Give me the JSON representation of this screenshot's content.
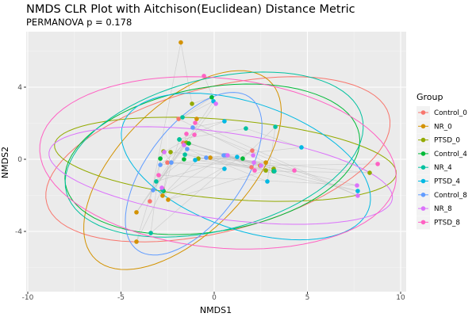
{
  "chart_data": {
    "type": "scatter",
    "title": "NMDS CLR Plot with Aitchison(Euclidean) Distance Metric",
    "subtitle": "PERMANOVA p = 0.178",
    "xlabel": "NMDS1",
    "ylabel": "NMDS2",
    "xlim": [
      -10.1,
      10.3
    ],
    "ylim": [
      -7.4,
      7.1
    ],
    "xticks": [
      -10,
      -5,
      0,
      5,
      10
    ],
    "yticks": [
      -4,
      0,
      4
    ],
    "grid": true,
    "legend": {
      "title": "Group",
      "placement": "right"
    },
    "series": [
      {
        "name": "Control_0",
        "color": "#F8766D",
        "points": [
          [
            -3.45,
            -2.33
          ],
          [
            -2.77,
            -1.63
          ],
          [
            -1.66,
            0.92
          ],
          [
            0.55,
            0.22
          ],
          [
            2.04,
            0.48
          ],
          [
            2.0,
            -0.44
          ],
          [
            -2.51,
            -0.18
          ],
          [
            -1.91,
            2.24
          ]
        ],
        "ellipse": {
          "cx": 0.2,
          "cy": 0.0,
          "a": 9.5,
          "b": 4.0,
          "angle": 15
        }
      },
      {
        "name": "NR_0",
        "color": "#D39200",
        "points": [
          [
            -1.79,
            6.48
          ],
          [
            -4.17,
            -4.57
          ],
          [
            -4.17,
            -2.94
          ],
          [
            -2.77,
            -2.02
          ],
          [
            -2.47,
            -2.24
          ],
          [
            -0.21,
            0.09
          ],
          [
            2.47,
            -0.35
          ],
          [
            2.77,
            -0.18
          ],
          [
            -0.94,
            2.24
          ]
        ],
        "ellipse": {
          "cx": -1.7,
          "cy": -0.6,
          "a": 6.8,
          "b": 3.5,
          "angle": 47
        }
      },
      {
        "name": "PTSD_0",
        "color": "#93AA00",
        "points": [
          [
            -1.19,
            3.08
          ],
          [
            -2.72,
            0.44
          ],
          [
            -1.49,
            0.92
          ],
          [
            -0.85,
            0.04
          ],
          [
            2.77,
            -0.62
          ],
          [
            8.34,
            -0.75
          ],
          [
            3.19,
            -0.53
          ],
          [
            -2.34,
            0.4
          ]
        ],
        "ellipse": {
          "cx": 0.6,
          "cy": 0.0,
          "a": 9.2,
          "b": 2.2,
          "angle": -5
        }
      },
      {
        "name": "Control_4",
        "color": "#00BA38",
        "points": [
          [
            -0.13,
            3.44
          ],
          [
            -2.89,
            0.04
          ],
          [
            -1.62,
            0.0
          ],
          [
            1.53,
            0.04
          ],
          [
            -1.87,
            1.1
          ],
          [
            3.19,
            -0.66
          ],
          [
            -1.36,
            0.88
          ],
          [
            -2.72,
            -1.76
          ]
        ],
        "ellipse": {
          "cx": -0.1,
          "cy": 0.0,
          "a": 8.0,
          "b": 4.0,
          "angle": 10
        }
      },
      {
        "name": "NR_4",
        "color": "#00C19F",
        "points": [
          [
            -1.7,
            2.33
          ],
          [
            -3.4,
            -4.09
          ],
          [
            -3.11,
            -1.23
          ],
          [
            3.28,
            1.8
          ],
          [
            1.7,
            1.71
          ],
          [
            -1.57,
            0.26
          ],
          [
            3.23,
            -0.66
          ],
          [
            -1.87,
            1.1
          ],
          [
            -2.77,
            -1.71
          ]
        ],
        "ellipse": {
          "cx": 0.0,
          "cy": 0.26,
          "a": 8.2,
          "b": 4.2,
          "angle": 15
        }
      },
      {
        "name": "PTSD_4",
        "color": "#00B9E3",
        "points": [
          [
            -0.04,
            3.22
          ],
          [
            0.55,
            -0.53
          ],
          [
            1.23,
            0.13
          ],
          [
            2.85,
            -1.23
          ],
          [
            4.68,
            0.66
          ],
          [
            7.7,
            -1.76
          ],
          [
            -1.02,
            -0.04
          ],
          [
            0.55,
            2.11
          ]
        ],
        "ellipse": {
          "cx": 1.7,
          "cy": -0.4,
          "a": 7.0,
          "b": 3.5,
          "angle": -20
        }
      },
      {
        "name": "Control_8",
        "color": "#619CFF",
        "points": [
          [
            -3.28,
            -1.71
          ],
          [
            -2.3,
            -0.18
          ],
          [
            -2.89,
            -0.31
          ],
          [
            -1.45,
            0.57
          ],
          [
            -0.43,
            0.09
          ],
          [
            0.51,
            0.22
          ],
          [
            0.64,
            0.22
          ],
          [
            -1.15,
            1.76
          ]
        ],
        "ellipse": {
          "cx": -1.1,
          "cy": -0.8,
          "a": 5.2,
          "b": 2.6,
          "angle": 55
        }
      },
      {
        "name": "NR_8",
        "color": "#DB72FB",
        "points": [
          [
            0.09,
            3.08
          ],
          [
            -2.68,
            0.4
          ],
          [
            -1.62,
            0.79
          ],
          [
            0.72,
            0.22
          ],
          [
            2.13,
            -0.18
          ],
          [
            2.51,
            -0.35
          ],
          [
            7.66,
            -1.45
          ],
          [
            7.7,
            -2.02
          ],
          [
            2.09,
            0.22
          ],
          [
            -2.81,
            -1.58
          ]
        ],
        "ellipse": {
          "cx": 0.35,
          "cy": -0.9,
          "a": 9.3,
          "b": 2.4,
          "angle": -8
        }
      },
      {
        "name": "PTSD_8",
        "color": "#FF61C3",
        "points": [
          [
            -0.55,
            4.62
          ],
          [
            -1.06,
            1.36
          ],
          [
            -1.49,
            1.41
          ],
          [
            2.17,
            -0.62
          ],
          [
            4.3,
            -0.62
          ],
          [
            8.77,
            -0.26
          ],
          [
            -2.98,
            -0.88
          ],
          [
            -1.02,
            2.02
          ]
        ],
        "ellipse": {
          "cx": 0.2,
          "cy": -0.2,
          "a": 9.6,
          "b": 4.7,
          "angle": -6
        }
      }
    ]
  }
}
